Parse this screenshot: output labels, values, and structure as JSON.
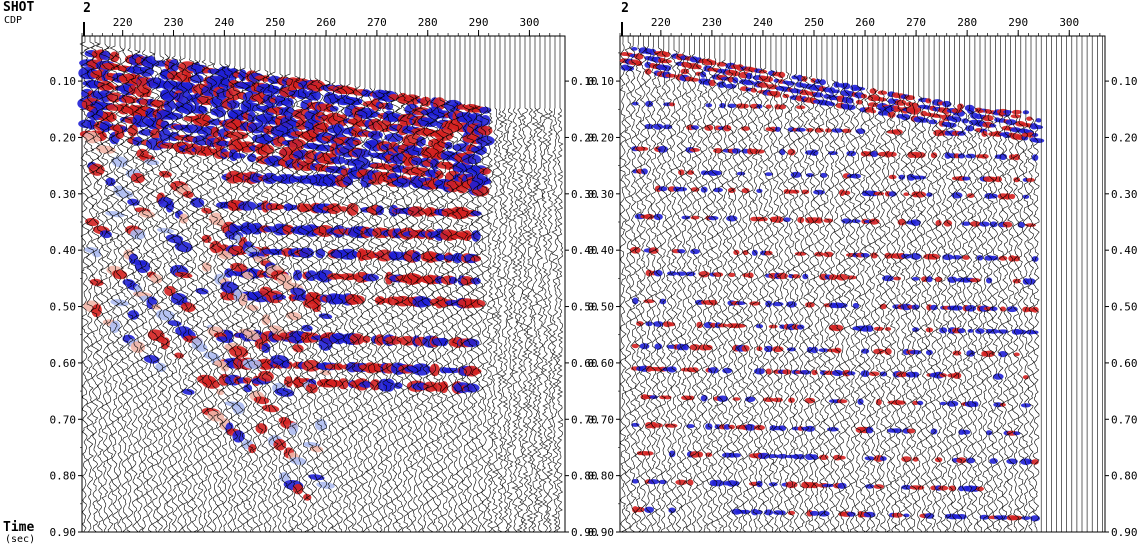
{
  "header": {
    "row1": "SHOT",
    "row2": "CDP",
    "time_label": "Time",
    "time_unit": "(sec)"
  },
  "chart_data": [
    {
      "type": "wiggle-trace seismic section",
      "panel": "left",
      "shot_number": "2",
      "x_axis": {
        "label": "CDP",
        "range": [
          212,
          307
        ],
        "ticks": [
          220,
          230,
          240,
          250,
          260,
          270,
          280,
          290,
          300
        ]
      },
      "y_axis": {
        "label": "Time (sec)",
        "range": [
          0.02,
          0.9
        ],
        "reversed": true,
        "ticks": [
          "0.10",
          "0.20",
          "0.30",
          "0.40",
          "0.50",
          "0.60",
          "0.70",
          "0.80",
          "0.90"
        ]
      },
      "fill_colors": {
        "positive": "#d42020",
        "negative": "#1f1fd6",
        "weak_positive": "#f2b6a8",
        "weak_negative": "#aebcf2"
      },
      "first_break_time_sec": {
        "cdp_212": 0.03,
        "cdp_293": 0.15
      },
      "noise_zone_cdp": [
        292,
        307
      ]
    },
    {
      "type": "wiggle-trace seismic section",
      "panel": "right",
      "shot_number": "2",
      "x_axis": {
        "label": "CDP",
        "range": [
          212,
          307
        ],
        "ticks": [
          220,
          230,
          240,
          250,
          260,
          270,
          280,
          290,
          300
        ]
      },
      "y_axis": {
        "label": "Time (sec)",
        "range": [
          0.02,
          0.9
        ],
        "reversed": true,
        "ticks": [
          "0.10",
          "0.20",
          "0.30",
          "0.40",
          "0.50",
          "0.60",
          "0.70",
          "0.80",
          "0.90"
        ]
      },
      "fill_colors": {
        "positive": "#d42020",
        "negative": "#1f1fd6"
      },
      "first_break_time_sec": {
        "cdp_212": 0.03,
        "cdp_294": 0.17
      },
      "live_trace_cdp": [
        212,
        294
      ]
    }
  ]
}
